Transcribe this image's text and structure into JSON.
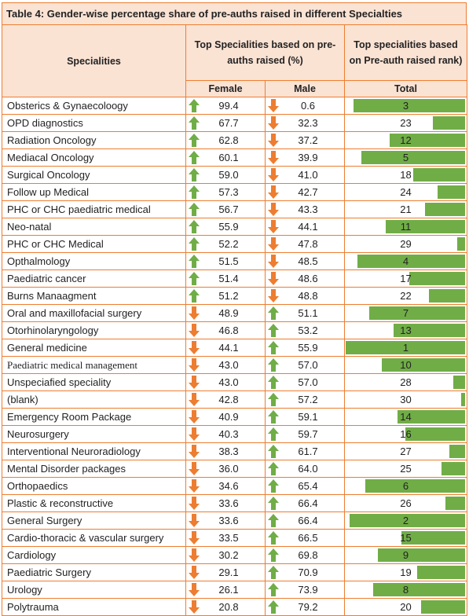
{
  "title": "Table 4: Gender-wise percentage share of pre-auths raised in different Specialties",
  "headers": {
    "specialities": "Specialities",
    "top_pct": "Top Specialities based on pre-auths raised (%)",
    "top_rank": "Top specialities based on Pre-auth raised rank)",
    "female": "Female",
    "male": "Male",
    "total": "Total"
  },
  "colors": {
    "border": "#ed7d31",
    "header_bg": "#fbe3d4",
    "up_arrow": "#70ad47",
    "down_arrow": "#ed7d31",
    "bar": "#70ad47"
  },
  "max_rank": 30,
  "rows": [
    {
      "name": "Obsterics & Gynaecoloogy",
      "female": "99.4",
      "male": "0.6",
      "female_dir": "up",
      "male_dir": "down",
      "rank": 3
    },
    {
      "name": "OPD diagnostics",
      "female": "67.7",
      "male": "32.3",
      "female_dir": "up",
      "male_dir": "down",
      "rank": 23
    },
    {
      "name": "Radiation Oncology",
      "female": "62.8",
      "male": "37.2",
      "female_dir": "up",
      "male_dir": "down",
      "rank": 12
    },
    {
      "name": "Mediacal Oncology",
      "female": "60.1",
      "male": "39.9",
      "female_dir": "up",
      "male_dir": "down",
      "rank": 5
    },
    {
      "name": "Surgical Oncology",
      "female": "59.0",
      "male": "41.0",
      "female_dir": "up",
      "male_dir": "down",
      "rank": 18
    },
    {
      "name": "Follow up Medical",
      "female": "57.3",
      "male": "42.7",
      "female_dir": "up",
      "male_dir": "down",
      "rank": 24
    },
    {
      "name": "PHC or CHC paediatric medical",
      "female": "56.7",
      "male": "43.3",
      "female_dir": "up",
      "male_dir": "down",
      "rank": 21
    },
    {
      "name": "Neo-natal",
      "female": "55.9",
      "male": "44.1",
      "female_dir": "up",
      "male_dir": "down",
      "rank": 11
    },
    {
      "name": "PHC or CHC  Medical",
      "female": "52.2",
      "male": "47.8",
      "female_dir": "up",
      "male_dir": "down",
      "rank": 29
    },
    {
      "name": "Opthalmology",
      "female": "51.5",
      "male": "48.5",
      "female_dir": "up",
      "male_dir": "down",
      "rank": 4
    },
    {
      "name": "Paediatric cancer",
      "female": "51.4",
      "male": "48.6",
      "female_dir": "up",
      "male_dir": "down",
      "rank": 17
    },
    {
      "name": "Burns Manaagment",
      "female": "51.2",
      "male": "48.8",
      "female_dir": "up",
      "male_dir": "down",
      "rank": 22
    },
    {
      "name": "Oral and maxillofacial surgery",
      "female": "48.9",
      "male": "51.1",
      "female_dir": "down",
      "male_dir": "up",
      "rank": 7
    },
    {
      "name": "Otorhinolaryngology",
      "female": "46.8",
      "male": "53.2",
      "female_dir": "down",
      "male_dir": "up",
      "rank": 13
    },
    {
      "name": "General medicine",
      "female": "44.1",
      "male": "55.9",
      "female_dir": "down",
      "male_dir": "up",
      "rank": 1
    },
    {
      "name": "Paediatric medical management",
      "female": "43.0",
      "male": "57.0",
      "female_dir": "down",
      "male_dir": "up",
      "rank": 10,
      "serif": true
    },
    {
      "name": "Unspeciafied speciality",
      "female": "43.0",
      "male": "57.0",
      "female_dir": "down",
      "male_dir": "up",
      "rank": 28
    },
    {
      "name": "(blank)",
      "female": "42.8",
      "male": "57.2",
      "female_dir": "down",
      "male_dir": "up",
      "rank": 30
    },
    {
      "name": "Emergency Room Package",
      "female": "40.9",
      "male": "59.1",
      "female_dir": "down",
      "male_dir": "up",
      "rank": 14
    },
    {
      "name": "Neurosurgery",
      "female": "40.3",
      "male": "59.7",
      "female_dir": "down",
      "male_dir": "up",
      "rank": 16
    },
    {
      "name": "Interventional Neuroradiology",
      "female": "38.3",
      "male": "61.7",
      "female_dir": "down",
      "male_dir": "up",
      "rank": 27
    },
    {
      "name": "Mental Disorder packages",
      "female": "36.0",
      "male": "64.0",
      "female_dir": "down",
      "male_dir": "up",
      "rank": 25
    },
    {
      "name": "Orthopaedics",
      "female": "34.6",
      "male": "65.4",
      "female_dir": "down",
      "male_dir": "up",
      "rank": 6
    },
    {
      "name": "Plastic & reconstructive",
      "female": "33.6",
      "male": "66.4",
      "female_dir": "down",
      "male_dir": "up",
      "rank": 26
    },
    {
      "name": "General Surgery",
      "female": "33.6",
      "male": "66.4",
      "female_dir": "down",
      "male_dir": "up",
      "rank": 2
    },
    {
      "name": "Cardio-thoracic & vascular surgery",
      "female": "33.5",
      "male": "66.5",
      "female_dir": "down",
      "male_dir": "up",
      "rank": 15
    },
    {
      "name": "Cardiology",
      "female": "30.2",
      "male": "69.8",
      "female_dir": "down",
      "male_dir": "up",
      "rank": 9
    },
    {
      "name": "Paediatric Surgery",
      "female": "29.1",
      "male": "70.9",
      "female_dir": "down",
      "male_dir": "up",
      "rank": 19
    },
    {
      "name": "Urology",
      "female": "26.1",
      "male": "73.9",
      "female_dir": "down",
      "male_dir": "up",
      "rank": 8
    },
    {
      "name": "Polytrauma",
      "female": "20.8",
      "male": "79.2",
      "female_dir": "down",
      "male_dir": "up",
      "rank": 20
    }
  ]
}
